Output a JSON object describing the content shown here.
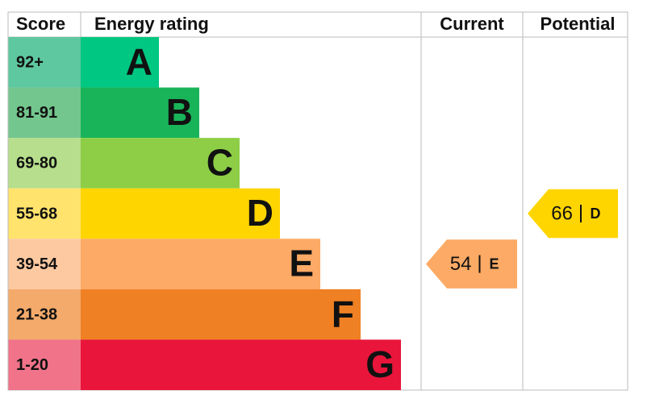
{
  "header": {
    "score": "Score",
    "energy_rating": "Energy rating",
    "current": "Current",
    "potential": "Potential"
  },
  "bands": [
    {
      "score": "92+",
      "letter": "A",
      "color": "#00c781",
      "score_color": "#5ec8a0"
    },
    {
      "score": "81-91",
      "letter": "B",
      "color": "#19b459",
      "score_color": "#73c68d"
    },
    {
      "score": "69-80",
      "letter": "C",
      "color": "#8dce46",
      "score_color": "#b6de8c"
    },
    {
      "score": "55-68",
      "letter": "D",
      "color": "#ffd500",
      "score_color": "#ffe36c"
    },
    {
      "score": "39-54",
      "letter": "E",
      "color": "#fcaa65",
      "score_color": "#fdc9a1"
    },
    {
      "score": "21-38",
      "letter": "F",
      "color": "#ef8023",
      "score_color": "#f4aa6b"
    },
    {
      "score": "1-20",
      "letter": "G",
      "color": "#e9153b",
      "score_color": "#f07389"
    }
  ],
  "current": {
    "value": 54,
    "letter": "E"
  },
  "potential": {
    "value": 66,
    "letter": "D"
  }
}
